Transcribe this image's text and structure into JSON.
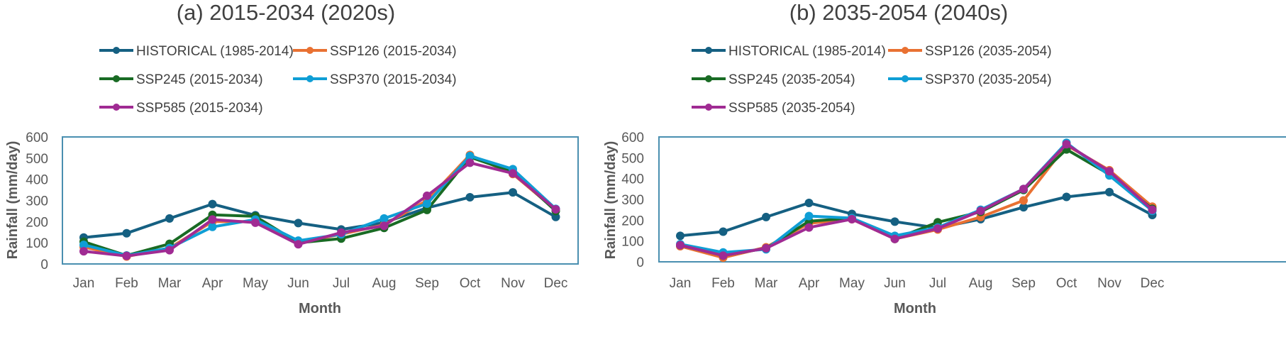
{
  "colors": {
    "HISTORICAL": "#156082",
    "SSP126": "#e97132",
    "SSP245": "#196b24",
    "SSP370": "#0f9ed5",
    "SSP585": "#a02b93",
    "frame": "#4a8fb0",
    "axis": "#bfbfbf"
  },
  "chart_data": [
    {
      "type": "line",
      "title": "(a) 2015-2034 (2020s)",
      "xlabel": "Month",
      "ylabel": "Rainfall (mm/day)",
      "ylim": [
        0,
        600
      ],
      "yticks": [
        0,
        100,
        200,
        300,
        400,
        500,
        600
      ],
      "categories": [
        "Jan",
        "Feb",
        "Mar",
        "Apr",
        "May",
        "Jun",
        "Jul",
        "Aug",
        "Sep",
        "Oct",
        "Nov",
        "Dec"
      ],
      "legend_position": "top",
      "series": [
        {
          "key": "HISTORICAL",
          "name": "HISTORICAL (1985-2014)",
          "values": [
            125,
            145,
            215,
            283,
            230,
            193,
            163,
            195,
            265,
            315,
            338,
            222
          ]
        },
        {
          "key": "SSP126",
          "name": "SSP126 (2015-2034)",
          "values": [
            80,
            35,
            75,
            200,
            200,
            100,
            140,
            185,
            300,
            515,
            425,
            255
          ]
        },
        {
          "key": "SSP245",
          "name": "SSP245 (2015-2034)",
          "values": [
            105,
            40,
            95,
            232,
            225,
            100,
            120,
            170,
            255,
            505,
            435,
            250
          ]
        },
        {
          "key": "SSP370",
          "name": "SSP370 (2015-2034)",
          "values": [
            90,
            40,
            75,
            175,
            210,
            110,
            140,
            215,
            285,
            510,
            448,
            260
          ]
        },
        {
          "key": "SSP585",
          "name": "SSP585 (2015-2034)",
          "values": [
            60,
            38,
            65,
            210,
            195,
            93,
            148,
            180,
            322,
            478,
            428,
            258
          ]
        }
      ]
    },
    {
      "type": "line",
      "title": "(b) 2035-2054 (2040s)",
      "xlabel": "Month",
      "ylabel": "Rainfall (mm/day)",
      "ylim": [
        0,
        600
      ],
      "yticks": [
        0,
        100,
        200,
        300,
        400,
        500,
        600
      ],
      "categories": [
        "Jan",
        "Feb",
        "Mar",
        "Apr",
        "May",
        "Jun",
        "Jul",
        "Aug",
        "Sep",
        "Oct",
        "Nov",
        "Dec"
      ],
      "legend_position": "top",
      "series": [
        {
          "key": "HISTORICAL",
          "name": "HISTORICAL (1985-2014)",
          "values": [
            125,
            145,
            215,
            283,
            230,
            193,
            163,
            205,
            262,
            312,
            335,
            225
          ]
        },
        {
          "key": "SSP126",
          "name": "SSP126 (2035-2054)",
          "values": [
            75,
            20,
            70,
            185,
            205,
            110,
            155,
            215,
            295,
            560,
            440,
            265
          ]
        },
        {
          "key": "SSP245",
          "name": "SSP245 (2035-2054)",
          "values": [
            80,
            30,
            65,
            195,
            210,
            110,
            190,
            240,
            345,
            540,
            420,
            255
          ]
        },
        {
          "key": "SSP370",
          "name": "SSP370 (2035-2054)",
          "values": [
            85,
            45,
            60,
            220,
            210,
            125,
            165,
            250,
            350,
            572,
            415,
            245
          ]
        },
        {
          "key": "SSP585",
          "name": "SSP585 (2035-2054)",
          "values": [
            80,
            30,
            65,
            165,
            205,
            110,
            160,
            245,
            350,
            565,
            435,
            250
          ]
        }
      ]
    }
  ]
}
